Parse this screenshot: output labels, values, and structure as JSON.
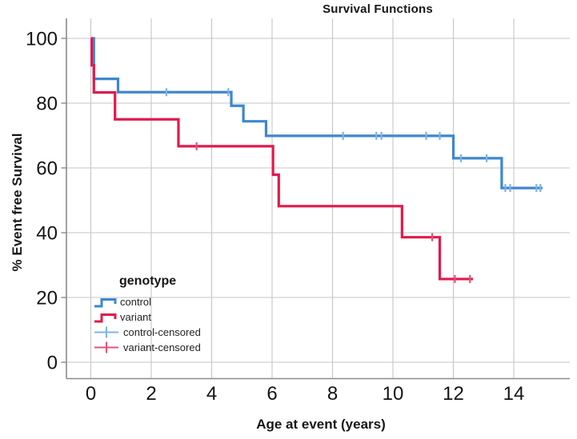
{
  "chart": {
    "title": "Survival Functions",
    "x_axis": {
      "label": "Age at event (years)"
    },
    "y_axis": {
      "label": "% Event free Survival"
    },
    "legend": {
      "title": "genotype",
      "entries": [
        {
          "label": "control",
          "icon": "step-line"
        },
        {
          "label": "variant",
          "icon": "step-line"
        },
        {
          "label": "control-censored",
          "icon": "plus"
        },
        {
          "label": "variant-censored",
          "icon": "plus"
        }
      ]
    }
  },
  "chart_data": {
    "type": "line",
    "variant": "kaplan_meier_step",
    "title": "Survival Functions",
    "xlabel": "Age at event (years)",
    "ylabel": "% Event free Survival",
    "xlim": [
      -0.8,
      15.9
    ],
    "ylim": [
      -5,
      106
    ],
    "x_ticks": [
      0,
      2,
      4,
      6,
      8,
      10,
      12,
      14
    ],
    "y_ticks": [
      0,
      20,
      40,
      60,
      80,
      100
    ],
    "grid": true,
    "legend_position": "lower-left-inside",
    "colors": {
      "grid": "#c6c6c6",
      "axis": "#8a8a8a",
      "tick_text": "#141414"
    },
    "series": [
      {
        "name": "control",
        "color": "#3D87CD",
        "censored_color": "#7FB3E6",
        "steps": [
          [
            0,
            100
          ],
          [
            0.1,
            87.5
          ],
          [
            0.9,
            83.4
          ],
          [
            4.65,
            79.2
          ],
          [
            5.05,
            74.4
          ],
          [
            5.8,
            69.9
          ],
          [
            12.0,
            63.0
          ],
          [
            13.6,
            53.8
          ]
        ],
        "end_age": 14.95,
        "censored": [
          [
            2.5,
            83.4
          ],
          [
            4.55,
            83.4
          ],
          [
            8.35,
            69.9
          ],
          [
            9.45,
            69.9
          ],
          [
            9.62,
            69.9
          ],
          [
            11.1,
            69.9
          ],
          [
            11.55,
            69.9
          ],
          [
            12.25,
            63.0
          ],
          [
            13.1,
            63.0
          ],
          [
            13.72,
            53.8
          ],
          [
            13.88,
            53.8
          ],
          [
            14.75,
            53.8
          ],
          [
            14.88,
            53.8
          ]
        ]
      },
      {
        "name": "variant",
        "color": "#E01A4E",
        "censored_color": "#E0537A",
        "steps": [
          [
            0,
            100
          ],
          [
            0.03,
            91.7
          ],
          [
            0.1,
            83.3
          ],
          [
            0.8,
            75.0
          ],
          [
            2.9,
            66.7
          ],
          [
            6.03,
            57.9
          ],
          [
            6.22,
            48.2
          ],
          [
            10.3,
            38.6
          ],
          [
            11.55,
            25.7
          ]
        ],
        "end_age": 12.65,
        "censored": [
          [
            3.5,
            66.7
          ],
          [
            11.3,
            38.6
          ],
          [
            12.05,
            25.7
          ],
          [
            12.55,
            25.7
          ]
        ]
      }
    ]
  }
}
